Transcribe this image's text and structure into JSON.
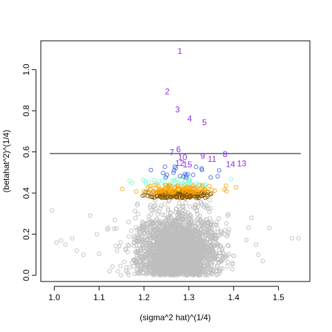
{
  "chart_data": {
    "type": "scatter",
    "title": "",
    "xlabel": "(sigma^2 hat)^(1/4)",
    "ylabel": "(betahat^2)^(1/4)",
    "xlim": [
      0.97,
      1.57
    ],
    "ylim": [
      -0.03,
      1.14
    ],
    "x_ticks": [
      1.0,
      1.1,
      1.2,
      1.3,
      1.4,
      1.5
    ],
    "x_tick_labels": [
      "1.0",
      "1.1",
      "1.2",
      "1.3",
      "1.4",
      "1.5"
    ],
    "y_ticks": [
      0.0,
      0.2,
      0.4,
      0.6,
      0.8,
      1.0
    ],
    "y_tick_labels": [
      "0.0",
      "0.2",
      "0.4",
      "0.6",
      "0.8",
      "1.0"
    ],
    "grid": false,
    "legend": "none",
    "reference_line": {
      "y": 0.592,
      "x_from": 0.99,
      "x_to": 1.55,
      "color": "#000000"
    },
    "colors": {
      "gray": "#bebebe",
      "brown": "#8b5a00",
      "orange": "#ffa500",
      "aquamarine": "#7fffd4",
      "blue": "#4169e1",
      "purple": "#8a2be2"
    },
    "bands": {
      "gray": {
        "y_range": [
          0.0,
          0.37
        ]
      },
      "brown": {
        "y_range": [
          0.375,
          0.41
        ]
      },
      "orange": {
        "y_range": [
          0.4,
          0.44
        ]
      },
      "aquamarine": {
        "y_range": [
          0.44,
          0.475
        ]
      },
      "blue": {
        "y_range": [
          0.475,
          0.535
        ]
      }
    },
    "labeled_points": [
      {
        "label": "1",
        "x": 1.28,
        "y": 1.09
      },
      {
        "label": "2",
        "x": 1.252,
        "y": 0.893
      },
      {
        "label": "3",
        "x": 1.275,
        "y": 0.806
      },
      {
        "label": "4",
        "x": 1.302,
        "y": 0.762
      },
      {
        "label": "5",
        "x": 1.335,
        "y": 0.744
      },
      {
        "label": "6",
        "x": 1.277,
        "y": 0.612
      },
      {
        "label": "7",
        "x": 1.262,
        "y": 0.597
      },
      {
        "label": "8",
        "x": 1.381,
        "y": 0.588
      },
      {
        "label": "9",
        "x": 1.331,
        "y": 0.58
      },
      {
        "label": "10",
        "x": 1.286,
        "y": 0.573
      },
      {
        "label": "11",
        "x": 1.352,
        "y": 0.565
      },
      {
        "label": "12",
        "x": 1.28,
        "y": 0.545
      },
      {
        "label": "13",
        "x": 1.418,
        "y": 0.543
      },
      {
        "label": "14",
        "x": 1.393,
        "y": 0.54
      },
      {
        "label": "15",
        "x": 1.297,
        "y": 0.538
      }
    ],
    "outliers_gray": [
      [
        0.995,
        0.315
      ],
      [
        1.005,
        0.16
      ],
      [
        1.015,
        0.17
      ],
      [
        1.025,
        0.15
      ],
      [
        1.04,
        0.18
      ],
      [
        1.05,
        0.12
      ],
      [
        1.065,
        0.1
      ],
      [
        1.08,
        0.29
      ],
      [
        1.095,
        0.2
      ],
      [
        1.1,
        0.105
      ],
      [
        1.12,
        0.23
      ],
      [
        1.135,
        0.27
      ],
      [
        1.14,
        0.12
      ],
      [
        1.48,
        0.23
      ],
      [
        1.53,
        0.18
      ],
      [
        1.545,
        0.18
      ],
      [
        1.465,
        0.07
      ],
      [
        1.455,
        0.1
      ],
      [
        1.45,
        0.15
      ],
      [
        1.44,
        0.28
      ]
    ]
  }
}
